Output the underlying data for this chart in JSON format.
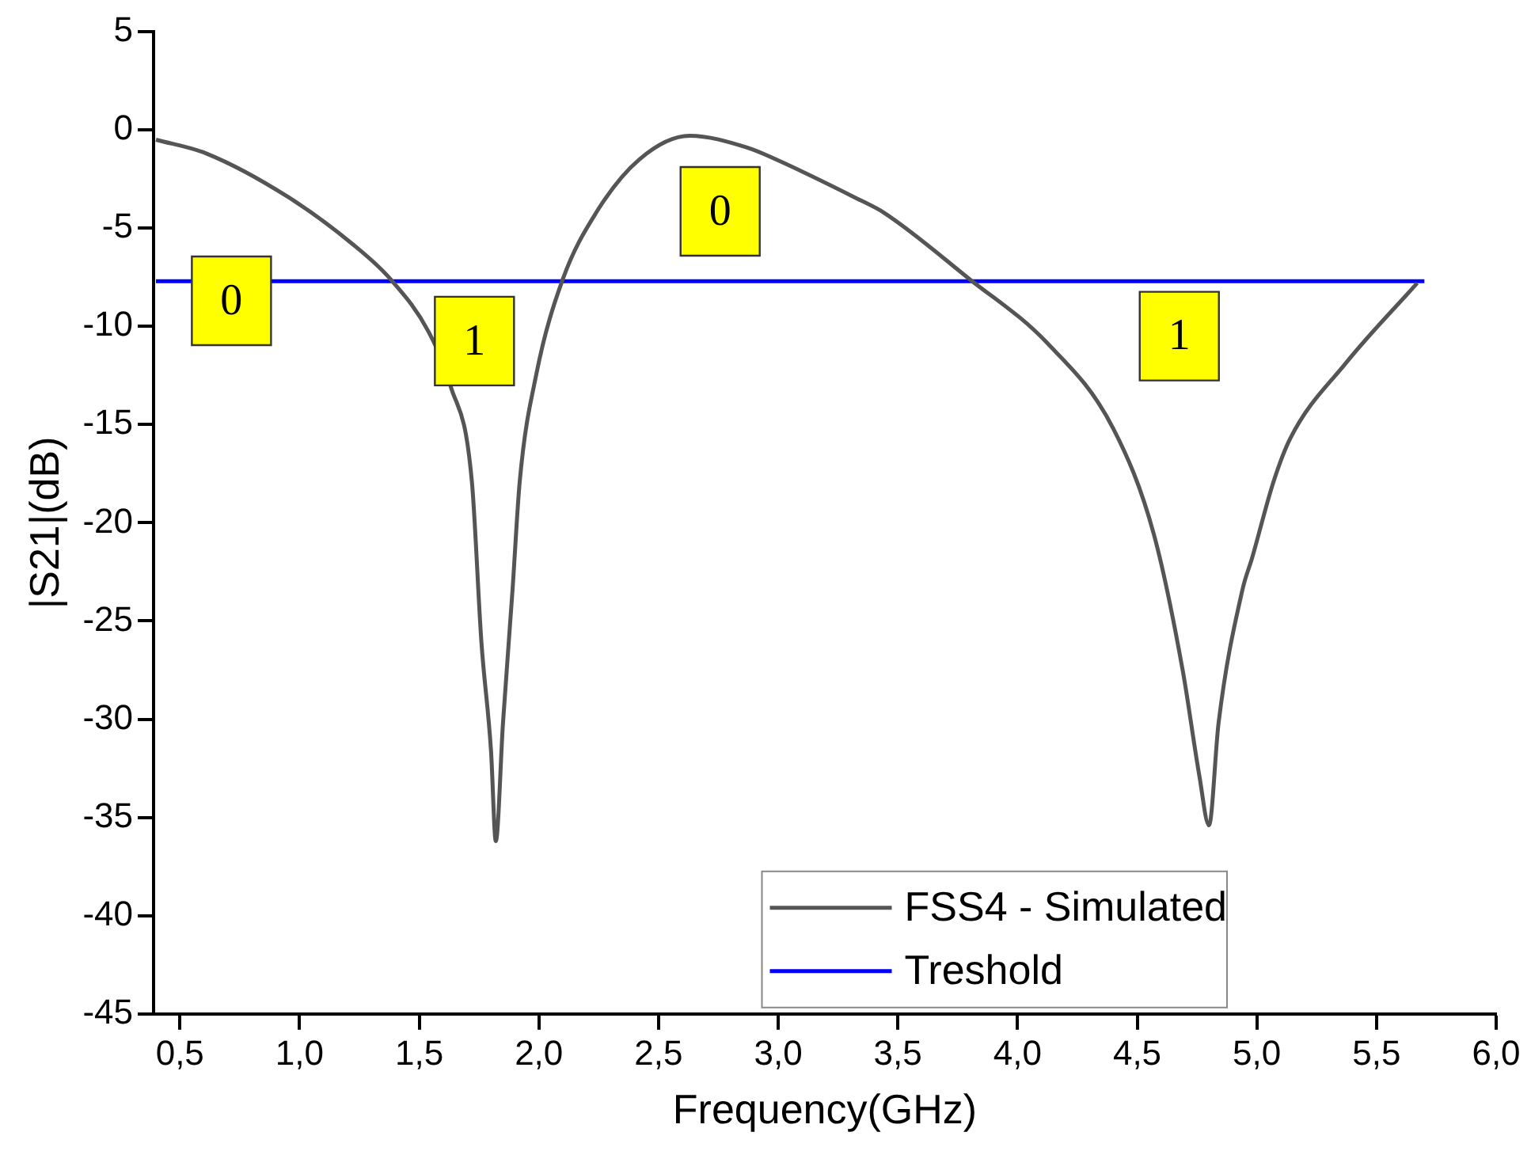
{
  "chart_data": {
    "type": "line",
    "xlabel": "Frequency(GHz)",
    "ylabel": "|S21|(dB)",
    "xlim": [
      0.39,
      6.0
    ],
    "ylim": [
      -45,
      5
    ],
    "xticks": [
      {
        "value": 0.5,
        "label": "0,5"
      },
      {
        "value": 1.0,
        "label": "1,0"
      },
      {
        "value": 1.5,
        "label": "1,5"
      },
      {
        "value": 2.0,
        "label": "2,0"
      },
      {
        "value": 2.5,
        "label": "2,5"
      },
      {
        "value": 3.0,
        "label": "3,0"
      },
      {
        "value": 3.5,
        "label": "3,5"
      },
      {
        "value": 4.0,
        "label": "4,0"
      },
      {
        "value": 4.5,
        "label": "4,5"
      },
      {
        "value": 5.0,
        "label": "5,0"
      },
      {
        "value": 5.5,
        "label": "5,5"
      },
      {
        "value": 6.0,
        "label": "6,0"
      }
    ],
    "yticks": [
      -45,
      -40,
      -35,
      -30,
      -25,
      -20,
      -15,
      -10,
      -5,
      0,
      5
    ],
    "grid": false,
    "legend": "bottom right",
    "marker": "none",
    "line_style": "solid",
    "series": [
      {
        "name": "FSS4 - Simulated",
        "color": "#555555",
        "x": [
          0.4,
          0.61,
          0.95,
          1.22,
          1.38,
          1.54,
          1.63,
          1.72,
          1.76,
          1.8,
          1.82,
          1.85,
          1.89,
          1.92,
          1.99,
          2.1,
          2.24,
          2.42,
          2.63,
          2.87,
          2.99,
          3.33,
          3.44,
          3.8,
          4.12,
          4.4,
          4.57,
          4.69,
          4.76,
          4.8,
          4.84,
          4.94,
          4.98,
          5.07,
          5.14,
          5.37,
          5.67
        ],
        "values": [
          -0.5,
          -1.2,
          -3.4,
          -5.8,
          -7.6,
          -10.3,
          -13.0,
          -17.9,
          -26.1,
          -31.6,
          -36.2,
          -30.2,
          -23.4,
          -17.9,
          -12.4,
          -7.6,
          -4.2,
          -1.5,
          -0.3,
          -0.9,
          -1.5,
          -3.5,
          -4.2,
          -7.6,
          -10.8,
          -15.2,
          -20.6,
          -27.5,
          -32.9,
          -35.4,
          -30.2,
          -23.4,
          -21.8,
          -17.9,
          -15.7,
          -11.9,
          -7.8
        ]
      },
      {
        "name": "Treshold",
        "color": "#0000ff",
        "x": [
          0.4,
          5.7
        ],
        "values": [
          -7.7,
          -7.7
        ]
      }
    ],
    "annotations": [
      "0",
      "1",
      "0",
      "1"
    ]
  }
}
